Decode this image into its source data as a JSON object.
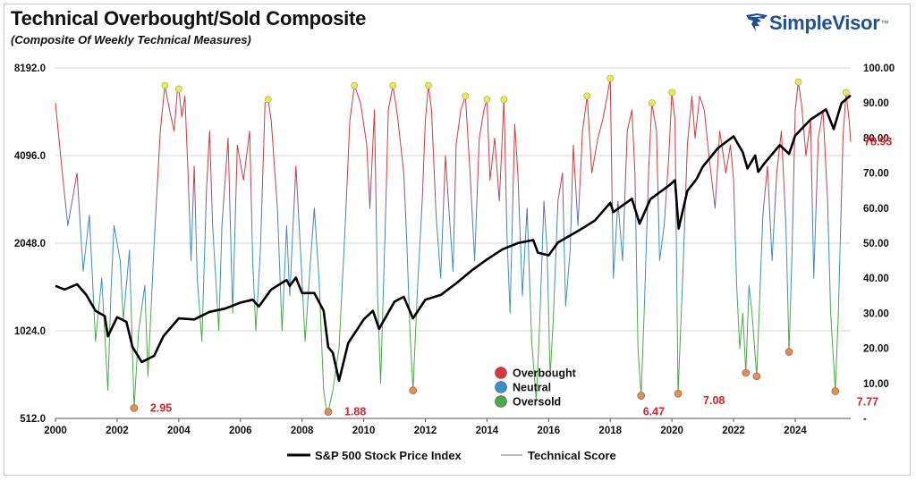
{
  "title": "Technical Overbought/Sold Composite",
  "subtitle": "(Composite Of Weekly Technical Measures)",
  "brand": {
    "name": "SimpleVisor",
    "tm": "™",
    "color": "#1f4e9a"
  },
  "colors": {
    "overbought": "#d9363e",
    "neutral": "#3d8fc6",
    "oversold": "#4ea84a",
    "sp500": "#000000",
    "marker_low": "#ec8a4a",
    "marker_high": "#e6f03c"
  },
  "legend": {
    "overbought": "Overbought",
    "neutral": "Neutral",
    "oversold": "Oversold",
    "sp500": "S&P 500 Stock Price Index",
    "score": "Technical Score"
  },
  "chart_data": {
    "type": "line",
    "x_ticks": [
      "2000",
      "2002",
      "2004",
      "2006",
      "2008",
      "2010",
      "2012",
      "2014",
      "2016",
      "2018",
      "2020",
      "2022",
      "2024"
    ],
    "x_range": [
      2000,
      2025.8
    ],
    "y_left_ticks": [
      "8192.0",
      "4096.0",
      "2048.0",
      "1024.0",
      "512.0"
    ],
    "y_left_range_log2": [
      9,
      13
    ],
    "y_right_ticks": [
      "100.00",
      "90.00",
      "80.00",
      "70.00",
      "60.00",
      "50.00",
      "40.00",
      "30.00",
      "20.00",
      "10.00",
      "-"
    ],
    "y_right_range": [
      0,
      100
    ],
    "zones": {
      "overbought_above": 70,
      "oversold_below": 35
    },
    "sp500": [
      [
        2000.0,
        1460
      ],
      [
        2000.3,
        1420
      ],
      [
        2000.7,
        1480
      ],
      [
        2001.0,
        1360
      ],
      [
        2001.3,
        1200
      ],
      [
        2001.6,
        1150
      ],
      [
        2001.7,
        980
      ],
      [
        2002.0,
        1140
      ],
      [
        2002.3,
        1100
      ],
      [
        2002.5,
        900
      ],
      [
        2002.8,
        800
      ],
      [
        2003.2,
        840
      ],
      [
        2003.5,
        980
      ],
      [
        2004.0,
        1130
      ],
      [
        2004.5,
        1120
      ],
      [
        2005.0,
        1190
      ],
      [
        2005.5,
        1220
      ],
      [
        2006.0,
        1280
      ],
      [
        2006.4,
        1310
      ],
      [
        2006.6,
        1240
      ],
      [
        2007.0,
        1420
      ],
      [
        2007.5,
        1530
      ],
      [
        2007.6,
        1460
      ],
      [
        2007.8,
        1560
      ],
      [
        2008.0,
        1380
      ],
      [
        2008.4,
        1380
      ],
      [
        2008.7,
        1200
      ],
      [
        2008.85,
        900
      ],
      [
        2009.0,
        860
      ],
      [
        2009.2,
        690
      ],
      [
        2009.5,
        930
      ],
      [
        2010.0,
        1120
      ],
      [
        2010.3,
        1200
      ],
      [
        2010.5,
        1040
      ],
      [
        2011.0,
        1290
      ],
      [
        2011.3,
        1340
      ],
      [
        2011.6,
        1130
      ],
      [
        2012.0,
        1310
      ],
      [
        2012.5,
        1360
      ],
      [
        2013.0,
        1490
      ],
      [
        2013.5,
        1650
      ],
      [
        2014.0,
        1800
      ],
      [
        2014.5,
        1950
      ],
      [
        2015.0,
        2050
      ],
      [
        2015.5,
        2100
      ],
      [
        2015.65,
        1900
      ],
      [
        2016.0,
        1860
      ],
      [
        2016.3,
        2060
      ],
      [
        2017.0,
        2270
      ],
      [
        2017.5,
        2450
      ],
      [
        2018.0,
        2820
      ],
      [
        2018.1,
        2620
      ],
      [
        2018.7,
        2910
      ],
      [
        2018.95,
        2390
      ],
      [
        2019.3,
        2900
      ],
      [
        2019.9,
        3230
      ],
      [
        2020.1,
        3370
      ],
      [
        2020.22,
        2300
      ],
      [
        2020.5,
        3100
      ],
      [
        2020.8,
        3400
      ],
      [
        2021.0,
        3750
      ],
      [
        2021.5,
        4350
      ],
      [
        2022.0,
        4770
      ],
      [
        2022.3,
        4200
      ],
      [
        2022.45,
        3700
      ],
      [
        2022.7,
        4100
      ],
      [
        2022.8,
        3600
      ],
      [
        2023.0,
        3850
      ],
      [
        2023.5,
        4450
      ],
      [
        2023.8,
        4150
      ],
      [
        2024.0,
        4800
      ],
      [
        2024.5,
        5450
      ],
      [
        2025.0,
        5900
      ],
      [
        2025.25,
        5050
      ],
      [
        2025.5,
        6200
      ],
      [
        2025.8,
        6600
      ]
    ],
    "technical_score": [
      [
        2000.0,
        90
      ],
      [
        2000.2,
        72
      ],
      [
        2000.4,
        55
      ],
      [
        2000.7,
        70
      ],
      [
        2000.9,
        42
      ],
      [
        2001.1,
        58
      ],
      [
        2001.3,
        22
      ],
      [
        2001.5,
        40
      ],
      [
        2001.7,
        8
      ],
      [
        2001.8,
        36
      ],
      [
        2001.9,
        55
      ],
      [
        2002.1,
        45
      ],
      [
        2002.2,
        28
      ],
      [
        2002.4,
        48
      ],
      [
        2002.55,
        2.95
      ],
      [
        2002.7,
        25
      ],
      [
        2002.9,
        38
      ],
      [
        2003.0,
        12
      ],
      [
        2003.2,
        50
      ],
      [
        2003.4,
        82
      ],
      [
        2003.55,
        95
      ],
      [
        2003.7,
        88
      ],
      [
        2003.85,
        82
      ],
      [
        2003.95,
        93
      ],
      [
        2004.0,
        94
      ],
      [
        2004.1,
        86
      ],
      [
        2004.2,
        92
      ],
      [
        2004.3,
        70
      ],
      [
        2004.4,
        45
      ],
      [
        2004.5,
        72
      ],
      [
        2004.6,
        40
      ],
      [
        2004.75,
        22
      ],
      [
        2004.9,
        65
      ],
      [
        2005.0,
        82
      ],
      [
        2005.1,
        55
      ],
      [
        2005.3,
        25
      ],
      [
        2005.4,
        55
      ],
      [
        2005.6,
        80
      ],
      [
        2005.75,
        30
      ],
      [
        2005.9,
        78
      ],
      [
        2006.1,
        68
      ],
      [
        2006.3,
        82
      ],
      [
        2006.4,
        45
      ],
      [
        2006.5,
        25
      ],
      [
        2006.65,
        48
      ],
      [
        2006.8,
        90
      ],
      [
        2006.9,
        91
      ],
      [
        2007.0,
        85
      ],
      [
        2007.2,
        60
      ],
      [
        2007.35,
        25
      ],
      [
        2007.5,
        55
      ],
      [
        2007.6,
        35
      ],
      [
        2007.8,
        72
      ],
      [
        2007.95,
        48
      ],
      [
        2008.1,
        22
      ],
      [
        2008.25,
        42
      ],
      [
        2008.4,
        60
      ],
      [
        2008.55,
        40
      ],
      [
        2008.7,
        8
      ],
      [
        2008.8,
        2
      ],
      [
        2008.85,
        1.88
      ],
      [
        2009.0,
        8
      ],
      [
        2009.2,
        20
      ],
      [
        2009.4,
        55
      ],
      [
        2009.55,
        85
      ],
      [
        2009.7,
        95
      ],
      [
        2009.9,
        90
      ],
      [
        2010.1,
        78
      ],
      [
        2010.2,
        60
      ],
      [
        2010.35,
        88
      ],
      [
        2010.45,
        35
      ],
      [
        2010.55,
        10
      ],
      [
        2010.7,
        55
      ],
      [
        2010.8,
        88
      ],
      [
        2010.95,
        95
      ],
      [
        2011.1,
        86
      ],
      [
        2011.3,
        70
      ],
      [
        2011.4,
        50
      ],
      [
        2011.5,
        25
      ],
      [
        2011.6,
        8
      ],
      [
        2011.75,
        38
      ],
      [
        2011.9,
        62
      ],
      [
        2012.0,
        85
      ],
      [
        2012.1,
        95
      ],
      [
        2012.2,
        88
      ],
      [
        2012.35,
        58
      ],
      [
        2012.5,
        40
      ],
      [
        2012.65,
        75
      ],
      [
        2012.8,
        55
      ],
      [
        2012.9,
        42
      ],
      [
        2013.0,
        78
      ],
      [
        2013.15,
        88
      ],
      [
        2013.3,
        92
      ],
      [
        2013.45,
        70
      ],
      [
        2013.6,
        45
      ],
      [
        2013.75,
        80
      ],
      [
        2013.9,
        88
      ],
      [
        2014.0,
        91
      ],
      [
        2014.1,
        68
      ],
      [
        2014.25,
        80
      ],
      [
        2014.4,
        62
      ],
      [
        2014.55,
        91
      ],
      [
        2014.65,
        52
      ],
      [
        2014.75,
        30
      ],
      [
        2014.9,
        84
      ],
      [
        2015.0,
        70
      ],
      [
        2015.15,
        35
      ],
      [
        2015.3,
        60
      ],
      [
        2015.45,
        22
      ],
      [
        2015.6,
        5
      ],
      [
        2015.7,
        25
      ],
      [
        2015.85,
        62
      ],
      [
        2015.95,
        48
      ],
      [
        2016.05,
        12
      ],
      [
        2016.15,
        28
      ],
      [
        2016.3,
        62
      ],
      [
        2016.45,
        70
      ],
      [
        2016.55,
        32
      ],
      [
        2016.7,
        48
      ],
      [
        2016.8,
        78
      ],
      [
        2016.95,
        55
      ],
      [
        2017.1,
        82
      ],
      [
        2017.25,
        92
      ],
      [
        2017.4,
        70
      ],
      [
        2017.6,
        80
      ],
      [
        2017.75,
        85
      ],
      [
        2017.9,
        92
      ],
      [
        2018.0,
        97
      ],
      [
        2018.1,
        40
      ],
      [
        2018.25,
        62
      ],
      [
        2018.4,
        45
      ],
      [
        2018.55,
        82
      ],
      [
        2018.7,
        88
      ],
      [
        2018.8,
        70
      ],
      [
        2018.9,
        20
      ],
      [
        2019.0,
        6.47
      ],
      [
        2019.1,
        30
      ],
      [
        2019.25,
        72
      ],
      [
        2019.35,
        90
      ],
      [
        2019.5,
        82
      ],
      [
        2019.6,
        45
      ],
      [
        2019.75,
        55
      ],
      [
        2019.9,
        75
      ],
      [
        2020.0,
        93
      ],
      [
        2020.1,
        85
      ],
      [
        2020.2,
        7.08
      ],
      [
        2020.35,
        40
      ],
      [
        2020.5,
        78
      ],
      [
        2020.65,
        92
      ],
      [
        2020.75,
        80
      ],
      [
        2020.9,
        92
      ],
      [
        2021.05,
        88
      ],
      [
        2021.2,
        75
      ],
      [
        2021.4,
        60
      ],
      [
        2021.55,
        82
      ],
      [
        2021.75,
        70
      ],
      [
        2021.9,
        78
      ],
      [
        2022.0,
        68
      ],
      [
        2022.1,
        38
      ],
      [
        2022.2,
        20
      ],
      [
        2022.3,
        30
      ],
      [
        2022.4,
        13
      ],
      [
        2022.5,
        38
      ],
      [
        2022.6,
        30
      ],
      [
        2022.75,
        12
      ],
      [
        2022.85,
        35
      ],
      [
        2022.95,
        58
      ],
      [
        2023.1,
        72
      ],
      [
        2023.25,
        45
      ],
      [
        2023.4,
        70
      ],
      [
        2023.55,
        82
      ],
      [
        2023.7,
        55
      ],
      [
        2023.8,
        19
      ],
      [
        2023.9,
        48
      ],
      [
        2024.0,
        88
      ],
      [
        2024.1,
        96
      ],
      [
        2024.2,
        90
      ],
      [
        2024.35,
        75
      ],
      [
        2024.5,
        85
      ],
      [
        2024.6,
        40
      ],
      [
        2024.75,
        80
      ],
      [
        2024.9,
        88
      ],
      [
        2025.05,
        62
      ],
      [
        2025.15,
        30
      ],
      [
        2025.3,
        7.77
      ],
      [
        2025.4,
        30
      ],
      [
        2025.55,
        80
      ],
      [
        2025.65,
        93
      ],
      [
        2025.75,
        85
      ],
      [
        2025.8,
        78.93
      ]
    ],
    "low_markers": [
      [
        2002.55,
        2.95
      ],
      [
        2008.85,
        1.88
      ],
      [
        2011.6,
        8
      ],
      [
        2019.0,
        6.47
      ],
      [
        2020.2,
        7.08
      ],
      [
        2022.4,
        13
      ],
      [
        2022.75,
        12
      ],
      [
        2023.8,
        19
      ],
      [
        2025.3,
        7.77
      ]
    ],
    "high_markers": [
      [
        2003.55,
        95
      ],
      [
        2004.0,
        94
      ],
      [
        2006.9,
        91
      ],
      [
        2009.7,
        95
      ],
      [
        2010.95,
        95
      ],
      [
        2012.1,
        95
      ],
      [
        2013.3,
        92
      ],
      [
        2014.0,
        91
      ],
      [
        2014.55,
        91
      ],
      [
        2017.25,
        92
      ],
      [
        2018.0,
        97
      ],
      [
        2019.35,
        90
      ],
      [
        2020.0,
        93
      ],
      [
        2024.1,
        96
      ],
      [
        2025.65,
        93
      ]
    ],
    "annotations": [
      {
        "x": 2002.55,
        "y": 2.95,
        "text": "2.95"
      },
      {
        "x": 2008.85,
        "y": 1.88,
        "text": "1.88"
      },
      {
        "x": 2019.0,
        "y": 6.47,
        "text": "6.47"
      },
      {
        "x": 2020.2,
        "y": 7.08,
        "text": "7.08"
      },
      {
        "x": 2025.3,
        "y": 7.77,
        "text": "7.77"
      },
      {
        "x": 2025.8,
        "y": 78.93,
        "text": "78.93"
      }
    ]
  }
}
